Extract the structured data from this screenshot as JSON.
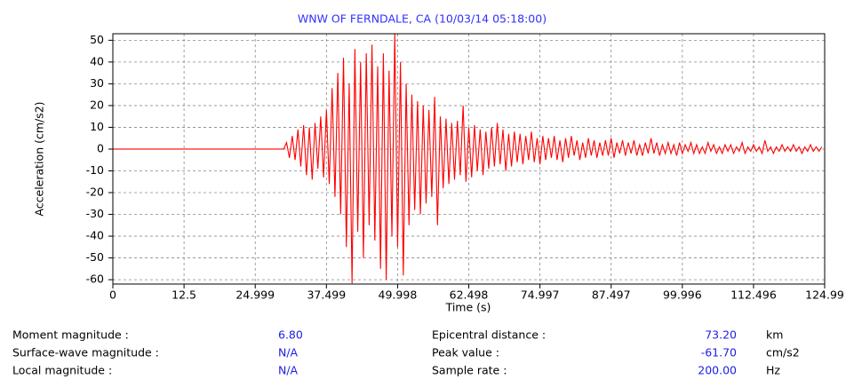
{
  "chart_data": {
    "type": "line",
    "title": "WNW OF FERNDALE, CA (10/03/14 05:18:00)",
    "x_label": "Time (s)",
    "y_label": "Acceleration (cm/s2)",
    "color": "#ff0000",
    "grid": true,
    "xlim": [
      0,
      124.99
    ],
    "xticks": [
      0,
      12.5,
      24.999,
      37.499,
      49.998,
      62.498,
      74.997,
      87.497,
      99.996,
      112.496,
      124.99
    ],
    "ylim": [
      -62,
      53
    ],
    "yticks": [
      -60,
      -50,
      -40,
      -30,
      -20,
      -10,
      0,
      10,
      20,
      30,
      40,
      50
    ],
    "x": [
      0,
      30,
      30.5,
      31,
      31.5,
      32,
      32.5,
      33,
      33.5,
      34,
      34.5,
      35,
      35.5,
      36,
      36.5,
      37,
      37.5,
      38,
      38.5,
      39,
      39.5,
      40,
      40.5,
      41,
      41.5,
      42,
      42.5,
      43,
      43.5,
      44,
      44.5,
      45,
      45.5,
      46,
      46.5,
      47,
      47.5,
      48,
      48.5,
      49,
      49.5,
      50,
      50.5,
      51,
      51.5,
      52,
      52.5,
      53,
      53.5,
      54,
      54.5,
      55,
      55.5,
      56,
      56.5,
      57,
      57.5,
      58,
      58.5,
      59,
      59.5,
      60,
      60.5,
      61,
      61.5,
      62,
      62.5,
      63,
      63.5,
      64,
      64.5,
      65,
      65.5,
      66,
      66.5,
      67,
      67.5,
      68,
      68.5,
      69,
      69.5,
      70,
      70.5,
      71,
      71.5,
      72,
      72.5,
      73,
      73.5,
      74,
      74.5,
      75,
      75.5,
      76,
      76.5,
      77,
      77.5,
      78,
      78.5,
      79,
      79.5,
      80,
      80.5,
      81,
      81.5,
      82,
      82.5,
      83,
      83.5,
      84,
      84.5,
      85,
      85.5,
      86,
      86.5,
      87,
      87.5,
      88,
      88.5,
      89,
      89.5,
      90,
      90.5,
      91,
      91.5,
      92,
      92.5,
      93,
      93.5,
      94,
      94.5,
      95,
      95.5,
      96,
      96.5,
      97,
      97.5,
      98,
      98.5,
      99,
      99.5,
      100,
      100.5,
      101,
      101.5,
      102,
      102.5,
      103,
      103.5,
      104,
      104.5,
      105,
      105.5,
      106,
      106.5,
      107,
      107.5,
      108,
      108.5,
      109,
      109.5,
      110,
      110.5,
      111,
      111.5,
      112,
      112.5,
      113,
      113.5,
      114,
      114.5,
      115,
      115.5,
      116,
      116.5,
      117,
      117.5,
      118,
      118.5,
      119,
      119.5,
      120,
      120.5,
      121,
      121.5,
      122,
      122.5,
      123,
      123.5,
      124,
      124.5
    ],
    "values": [
      0,
      0,
      3,
      -4,
      6,
      -5,
      9,
      -8,
      11,
      -12,
      10,
      -14,
      12,
      -9,
      15,
      -13,
      18,
      -16,
      28,
      -22,
      35,
      -30,
      42,
      -45,
      30,
      -61.7,
      46,
      -38,
      40,
      -50,
      44,
      -35,
      48,
      -42,
      38,
      -55,
      44,
      -60,
      36,
      -40,
      53,
      -45,
      40,
      -58,
      30,
      -35,
      25,
      -28,
      22,
      -30,
      20,
      -25,
      18,
      -22,
      24,
      -35,
      15,
      -18,
      14,
      -16,
      12,
      -14,
      13,
      -12,
      20,
      -15,
      10,
      -13,
      11,
      -10,
      9,
      -12,
      8,
      -9,
      10,
      -8,
      12,
      -7,
      9,
      -10,
      7,
      -8,
      8,
      -6,
      7,
      -7,
      6,
      -5,
      8,
      -6,
      5,
      -7,
      6,
      -5,
      5,
      -4,
      6,
      -5,
      4,
      -6,
      5,
      -4,
      6,
      -3,
      4,
      -5,
      3,
      -4,
      5,
      -3,
      4,
      -4,
      3,
      -3,
      4,
      -3,
      5,
      -4,
      3,
      -2,
      4,
      -3,
      3,
      -2,
      4,
      -3,
      2,
      -3,
      3,
      -2,
      5,
      -2,
      3,
      -3,
      2,
      -2,
      3,
      -2,
      2,
      -3,
      3,
      -2,
      2,
      -1,
      3,
      -2,
      2,
      -2,
      1,
      -2,
      3,
      -1,
      2,
      -2,
      1,
      -2,
      2,
      -1,
      2,
      -2,
      1,
      -1,
      3,
      -2,
      1,
      -1,
      2,
      -1,
      1,
      -2,
      4,
      -1,
      1,
      -2,
      1,
      -1,
      2,
      -1,
      1,
      -1,
      2,
      -1,
      1,
      -2,
      1,
      -1,
      2,
      -1,
      1,
      -1,
      1
    ]
  },
  "info": {
    "rows": [
      [
        "Moment magnitude :",
        "6.80",
        "Epicentral distance :",
        "73.20",
        "km"
      ],
      [
        "Surface-wave magnitude :",
        "N/A",
        "Peak value :",
        "-61.70",
        "cm/s2"
      ],
      [
        "Local magnitude :",
        "N/A",
        "Sample rate :",
        "200.00",
        "Hz"
      ]
    ]
  }
}
